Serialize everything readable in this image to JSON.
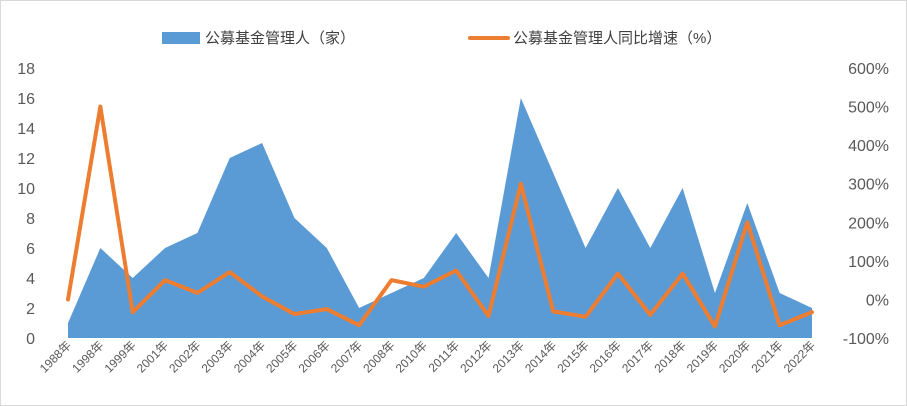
{
  "chart_data": {
    "type": "area",
    "categories": [
      "1988年",
      "1998年",
      "1999年",
      "2001年",
      "2002年",
      "2003年",
      "2004年",
      "2005年",
      "2006年",
      "2007年",
      "2008年",
      "2010年",
      "2011年",
      "2012年",
      "2013年",
      "2014年",
      "2015年",
      "2016年",
      "2017年",
      "2018年",
      "2019年",
      "2020年",
      "2021年",
      "2022年"
    ],
    "series": [
      {
        "name": "公募基金管理人（家）",
        "type": "area",
        "axis": "left",
        "color": "#5b9bd5",
        "values": [
          1,
          6,
          4,
          6,
          7,
          12,
          13,
          8,
          6,
          2,
          3,
          4,
          7,
          4,
          16,
          11,
          6,
          10,
          6,
          10,
          3,
          9,
          3,
          2
        ]
      },
      {
        "name": "公募基金管理人同比增速（%）",
        "type": "line",
        "axis": "right",
        "color": "#ed7d31",
        "values": [
          0,
          500,
          -33,
          50,
          17,
          71,
          8,
          -38,
          -25,
          -67,
          50,
          33,
          75,
          -43,
          300,
          -31,
          -45,
          67,
          -40,
          67,
          -70,
          200,
          -67,
          -33
        ]
      }
    ],
    "y_left": {
      "min": 0,
      "max": 18,
      "step": 2,
      "ticks": [
        "0",
        "2",
        "4",
        "6",
        "8",
        "10",
        "12",
        "14",
        "16",
        "18"
      ]
    },
    "y_right": {
      "min": -100,
      "max": 600,
      "step": 100,
      "ticks": [
        "-100%",
        "0%",
        "100%",
        "200%",
        "300%",
        "400%",
        "500%",
        "600%"
      ]
    },
    "legend_position": "top-center",
    "grid": false
  }
}
